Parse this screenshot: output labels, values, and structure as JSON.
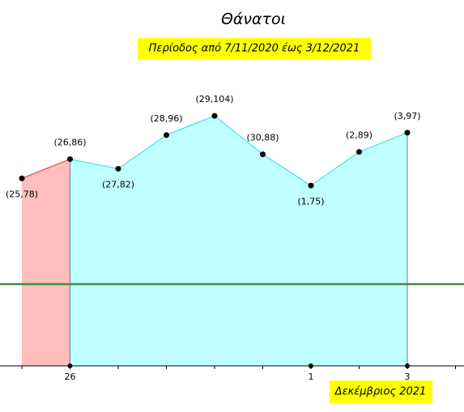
{
  "chart_data": {
    "type": "area",
    "title": "Θάνατοι",
    "subtitle": "Περίοδος από 7/11/2020 έως 3/12/2021",
    "x_label": "Δεκέμβριος 2021",
    "categories": [
      null,
      "26",
      null,
      null,
      null,
      null,
      "1",
      null,
      "3"
    ],
    "values": [
      78,
      86,
      82,
      96,
      104,
      88,
      75,
      89,
      97
    ],
    "value_labels": [
      "(25,78)",
      "(26,86)",
      "(27,82)",
      "(28,96)",
      "(29,104)",
      "(30,88)",
      "(1,75)",
      "(2,89)",
      "(3,97)"
    ],
    "ylim": [
      0,
      150
    ],
    "split_index": 1,
    "area_colors": [
      "#ffbdbd",
      "#c0ffff"
    ],
    "line_colors": [
      "#e05555",
      "#4fe3e3"
    ],
    "hline_value": 34,
    "hline_color": "#3f8f3f"
  }
}
